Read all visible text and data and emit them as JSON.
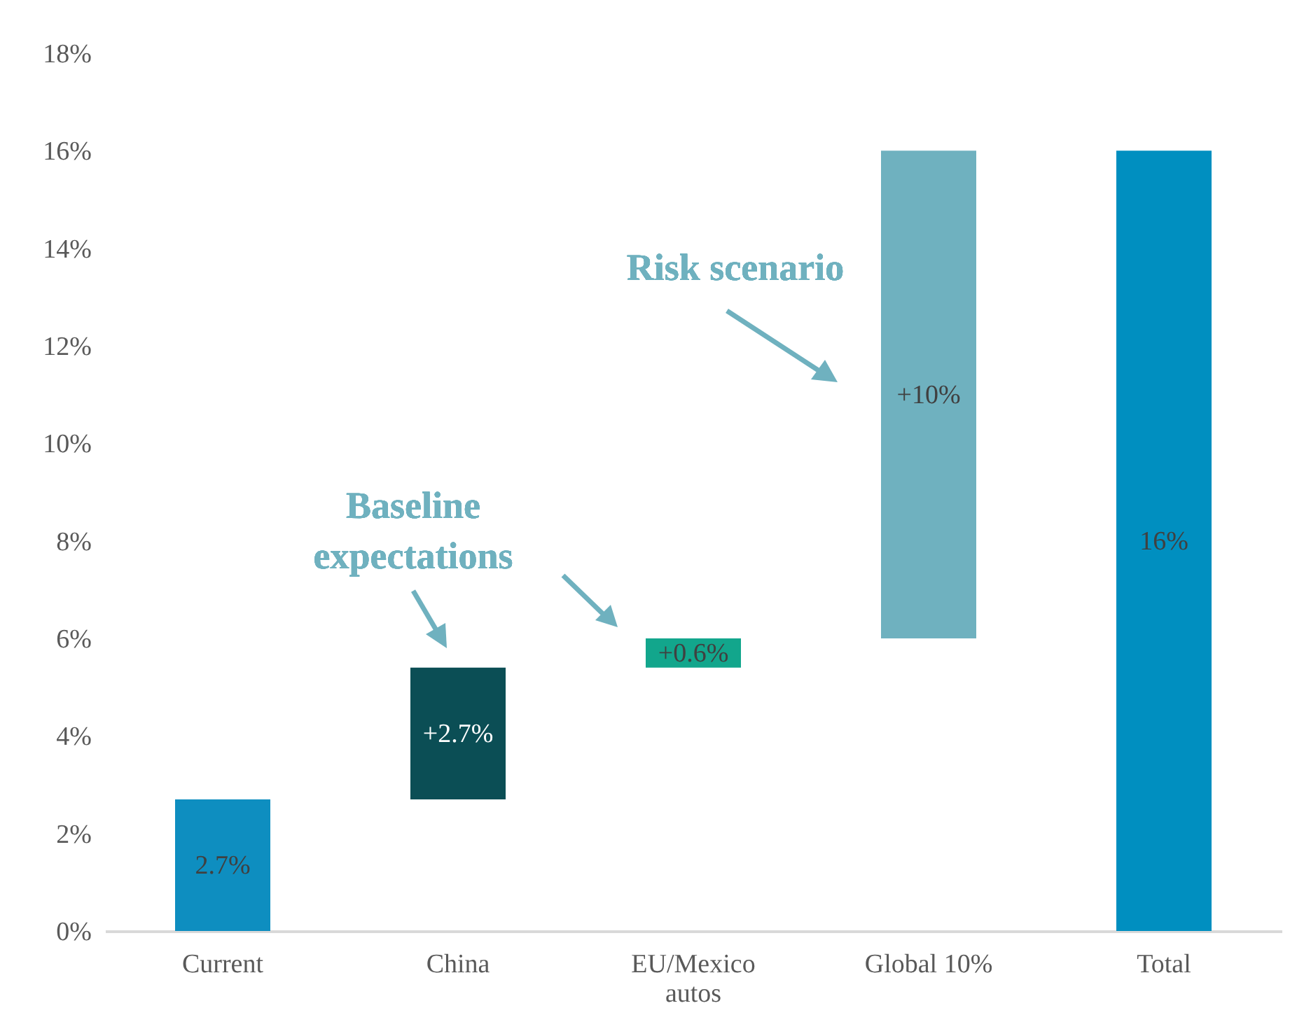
{
  "chart_data": {
    "type": "bar",
    "categories": [
      "Current",
      "China",
      "EU/Mexico autos",
      "Global 10%",
      "Total"
    ],
    "values": [
      2.7,
      2.7,
      0.6,
      10,
      16
    ],
    "base": [
      0,
      2.7,
      5.4,
      6,
      0
    ],
    "colors": [
      "#0e8ec0",
      "#0b4e55",
      "#12a68c",
      "#6fb1bf",
      "#008fc0"
    ],
    "value_labels": [
      "2.7%",
      "+2.7%",
      "+0.6%",
      "+10%",
      "16%"
    ],
    "ylim": [
      0,
      18
    ],
    "yticks": [
      {
        "value": 0,
        "label": "0%"
      },
      {
        "value": 2,
        "label": "2%"
      },
      {
        "value": 4,
        "label": "4%"
      },
      {
        "value": 6,
        "label": "6%"
      },
      {
        "value": 8,
        "label": "8%"
      },
      {
        "value": 10,
        "label": "10%"
      },
      {
        "value": 12,
        "label": "12%"
      },
      {
        "value": 14,
        "label": "14%"
      },
      {
        "value": 16,
        "label": "16%"
      },
      {
        "value": 18,
        "label": "18%"
      }
    ],
    "annotations": [
      "Risk scenario",
      "Baseline expectations"
    ],
    "grid": false
  }
}
